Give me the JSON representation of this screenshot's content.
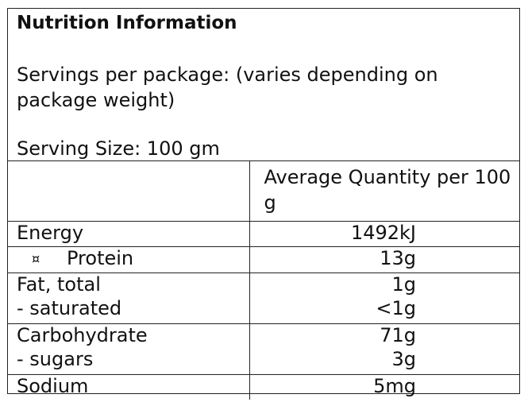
{
  "title": "Nutrition Information",
  "servings": "Servings per package: (varies depending on package weight)",
  "serving_size": "Serving Size: 100 gm",
  "column_header": "Average Quantity per 100 g",
  "rows": [
    {
      "label": "Energy",
      "value": "1492kJ"
    },
    {
      "bullet": "¤",
      "label": "Protein",
      "value": "13g"
    },
    {
      "label": "Fat, total",
      "value": "1g"
    },
    {
      "label": "- saturated",
      "value": "<1g"
    },
    {
      "label": "Carbohydrate",
      "value": "71g"
    },
    {
      "label": "- sugars",
      "value": "3g"
    },
    {
      "label": "Sodium",
      "value": "5mg"
    }
  ]
}
